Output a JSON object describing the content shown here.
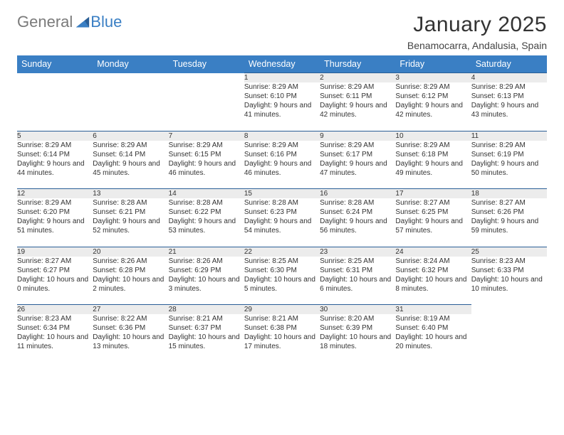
{
  "brand": {
    "part1": "General",
    "part2": "Blue"
  },
  "title": "January 2025",
  "location": "Benamocarra, Andalusia, Spain",
  "columns": [
    "Sunday",
    "Monday",
    "Tuesday",
    "Wednesday",
    "Thursday",
    "Friday",
    "Saturday"
  ],
  "colors": {
    "header_bg": "#3a7fc4",
    "header_text": "#ffffff",
    "daynum_bg": "#ececec",
    "row_divider": "#2a5e96",
    "logo_gray": "#7a7a7a",
    "logo_blue": "#3a7fc4"
  },
  "weeks": [
    [
      null,
      null,
      null,
      {
        "n": "1",
        "sr": "8:29 AM",
        "ss": "6:10 PM",
        "dl": "9 hours and 41 minutes."
      },
      {
        "n": "2",
        "sr": "8:29 AM",
        "ss": "6:11 PM",
        "dl": "9 hours and 42 minutes."
      },
      {
        "n": "3",
        "sr": "8:29 AM",
        "ss": "6:12 PM",
        "dl": "9 hours and 42 minutes."
      },
      {
        "n": "4",
        "sr": "8:29 AM",
        "ss": "6:13 PM",
        "dl": "9 hours and 43 minutes."
      }
    ],
    [
      {
        "n": "5",
        "sr": "8:29 AM",
        "ss": "6:14 PM",
        "dl": "9 hours and 44 minutes."
      },
      {
        "n": "6",
        "sr": "8:29 AM",
        "ss": "6:14 PM",
        "dl": "9 hours and 45 minutes."
      },
      {
        "n": "7",
        "sr": "8:29 AM",
        "ss": "6:15 PM",
        "dl": "9 hours and 46 minutes."
      },
      {
        "n": "8",
        "sr": "8:29 AM",
        "ss": "6:16 PM",
        "dl": "9 hours and 46 minutes."
      },
      {
        "n": "9",
        "sr": "8:29 AM",
        "ss": "6:17 PM",
        "dl": "9 hours and 47 minutes."
      },
      {
        "n": "10",
        "sr": "8:29 AM",
        "ss": "6:18 PM",
        "dl": "9 hours and 49 minutes."
      },
      {
        "n": "11",
        "sr": "8:29 AM",
        "ss": "6:19 PM",
        "dl": "9 hours and 50 minutes."
      }
    ],
    [
      {
        "n": "12",
        "sr": "8:29 AM",
        "ss": "6:20 PM",
        "dl": "9 hours and 51 minutes."
      },
      {
        "n": "13",
        "sr": "8:28 AM",
        "ss": "6:21 PM",
        "dl": "9 hours and 52 minutes."
      },
      {
        "n": "14",
        "sr": "8:28 AM",
        "ss": "6:22 PM",
        "dl": "9 hours and 53 minutes."
      },
      {
        "n": "15",
        "sr": "8:28 AM",
        "ss": "6:23 PM",
        "dl": "9 hours and 54 minutes."
      },
      {
        "n": "16",
        "sr": "8:28 AM",
        "ss": "6:24 PM",
        "dl": "9 hours and 56 minutes."
      },
      {
        "n": "17",
        "sr": "8:27 AM",
        "ss": "6:25 PM",
        "dl": "9 hours and 57 minutes."
      },
      {
        "n": "18",
        "sr": "8:27 AM",
        "ss": "6:26 PM",
        "dl": "9 hours and 59 minutes."
      }
    ],
    [
      {
        "n": "19",
        "sr": "8:27 AM",
        "ss": "6:27 PM",
        "dl": "10 hours and 0 minutes."
      },
      {
        "n": "20",
        "sr": "8:26 AM",
        "ss": "6:28 PM",
        "dl": "10 hours and 2 minutes."
      },
      {
        "n": "21",
        "sr": "8:26 AM",
        "ss": "6:29 PM",
        "dl": "10 hours and 3 minutes."
      },
      {
        "n": "22",
        "sr": "8:25 AM",
        "ss": "6:30 PM",
        "dl": "10 hours and 5 minutes."
      },
      {
        "n": "23",
        "sr": "8:25 AM",
        "ss": "6:31 PM",
        "dl": "10 hours and 6 minutes."
      },
      {
        "n": "24",
        "sr": "8:24 AM",
        "ss": "6:32 PM",
        "dl": "10 hours and 8 minutes."
      },
      {
        "n": "25",
        "sr": "8:23 AM",
        "ss": "6:33 PM",
        "dl": "10 hours and 10 minutes."
      }
    ],
    [
      {
        "n": "26",
        "sr": "8:23 AM",
        "ss": "6:34 PM",
        "dl": "10 hours and 11 minutes."
      },
      {
        "n": "27",
        "sr": "8:22 AM",
        "ss": "6:36 PM",
        "dl": "10 hours and 13 minutes."
      },
      {
        "n": "28",
        "sr": "8:21 AM",
        "ss": "6:37 PM",
        "dl": "10 hours and 15 minutes."
      },
      {
        "n": "29",
        "sr": "8:21 AM",
        "ss": "6:38 PM",
        "dl": "10 hours and 17 minutes."
      },
      {
        "n": "30",
        "sr": "8:20 AM",
        "ss": "6:39 PM",
        "dl": "10 hours and 18 minutes."
      },
      {
        "n": "31",
        "sr": "8:19 AM",
        "ss": "6:40 PM",
        "dl": "10 hours and 20 minutes."
      },
      null
    ]
  ],
  "labels": {
    "sunrise": "Sunrise: ",
    "sunset": "Sunset: ",
    "daylight": "Daylight: "
  }
}
